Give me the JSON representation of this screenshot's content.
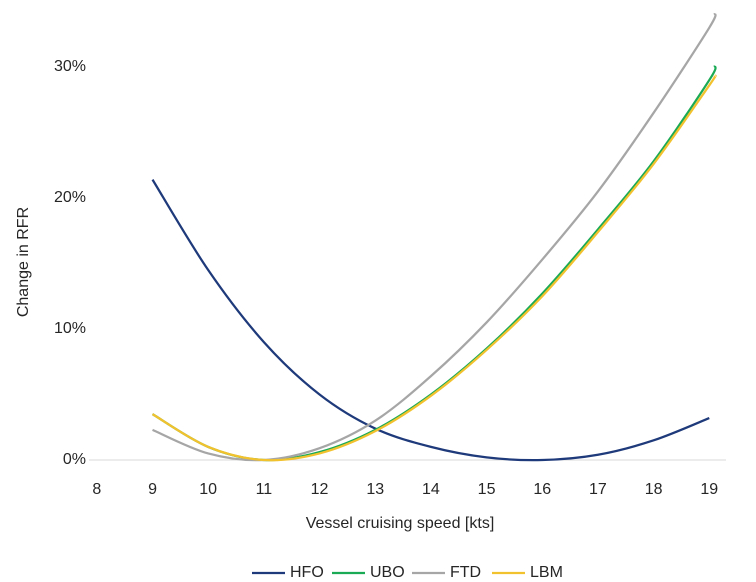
{
  "chart_data": {
    "type": "line",
    "x_label": "Vessel cruising speed [kts]",
    "y_label": "Change in RFR",
    "xlim": [
      7.5,
      19.3
    ],
    "xticks": [
      8,
      9,
      10,
      11,
      12,
      13,
      14,
      15,
      16,
      17,
      18,
      19
    ],
    "ylim": [
      0,
      34.5
    ],
    "yticks": [
      {
        "value": 0,
        "label": "0%"
      },
      {
        "value": 10,
        "label": "10%"
      },
      {
        "value": 20,
        "label": "20%"
      },
      {
        "value": 30,
        "label": "30%"
      }
    ],
    "legend": "bottom",
    "series": [
      {
        "name": "HFO",
        "color": "#1f3a7a",
        "x": [
          9,
          10,
          11,
          12,
          13,
          14,
          15,
          16,
          17,
          18,
          19
        ],
        "values": [
          21.4,
          14.5,
          9.0,
          5.0,
          2.4,
          1.0,
          0.2,
          0,
          0.4,
          1.5,
          3.2
        ]
      },
      {
        "name": "UBO",
        "color": "#1aaa55",
        "x": [
          9,
          10,
          11,
          12,
          13,
          14,
          15,
          16,
          17,
          18,
          19,
          19.1
        ],
        "values": [
          3.5,
          1.0,
          0,
          0.6,
          2.3,
          5.0,
          8.5,
          12.7,
          17.6,
          22.8,
          29.0,
          30.1
        ]
      },
      {
        "name": "FTD",
        "color": "#a6a6a6",
        "x": [
          9,
          10,
          11,
          12,
          13,
          14,
          15,
          16,
          17,
          18,
          19,
          19.1
        ],
        "values": [
          2.3,
          0.5,
          0,
          0.9,
          3.0,
          6.4,
          10.5,
          15.3,
          20.5,
          26.5,
          33.0,
          34.1
        ]
      },
      {
        "name": "LBM",
        "color": "#f2c12e",
        "x": [
          9,
          10,
          11,
          12,
          13,
          14,
          15,
          16,
          17,
          18,
          19,
          19.1
        ],
        "values": [
          3.5,
          1.0,
          0,
          0.5,
          2.2,
          4.9,
          8.4,
          12.5,
          17.4,
          22.6,
          28.6,
          29.3
        ]
      }
    ]
  }
}
